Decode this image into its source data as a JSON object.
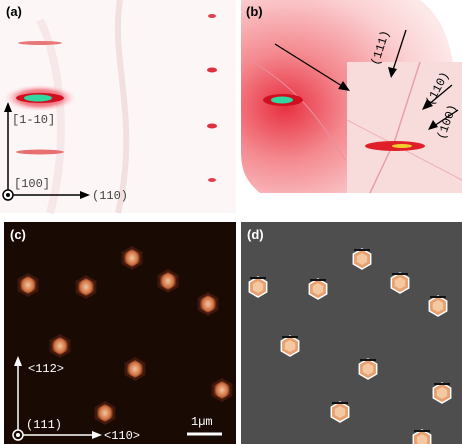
{
  "panels": [
    {
      "label": "(a)",
      "annotations": [
        "[1-10]",
        "[100]",
        "(110)"
      ]
    },
    {
      "label": "(b)",
      "annotations": [
        "(111)",
        "(110)",
        "(100)"
      ]
    },
    {
      "label": "(c)",
      "annotations": [
        "<112>",
        "(111)",
        "<110>",
        "1µm"
      ]
    },
    {
      "label": "(d)"
    }
  ]
}
